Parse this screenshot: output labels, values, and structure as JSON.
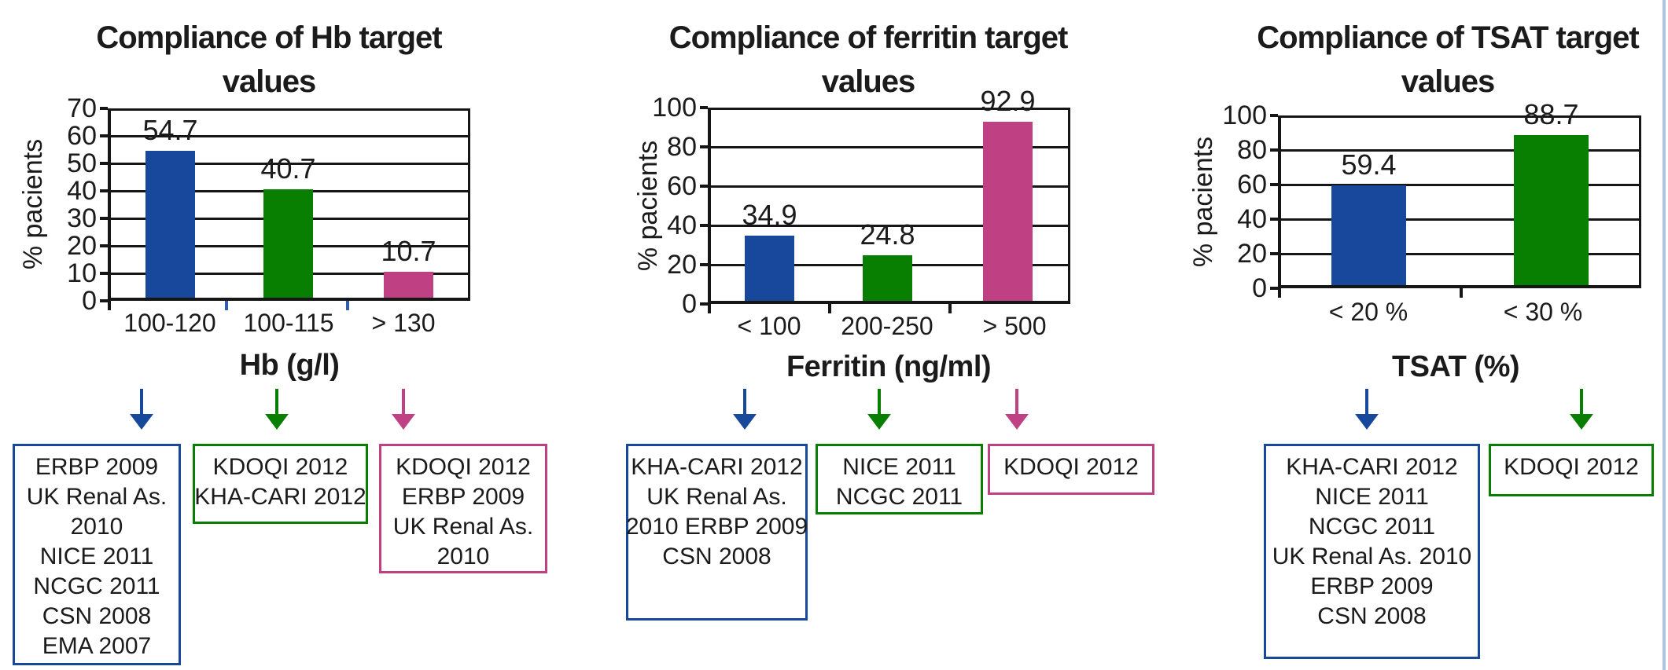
{
  "page": {
    "background": "#ffffff",
    "edge_line_color": "#aec6e0"
  },
  "colors": {
    "blue": "#17489c",
    "green": "#087f00",
    "pink": "#c04183",
    "line": "#161616",
    "text": "#1b1b1b",
    "category_tick_blue": "#2f5fae"
  },
  "chart_data": [
    {
      "type": "bar",
      "title": "Compliance of Hb target values",
      "title_lines": [
        "Compliance of Hb target",
        "values"
      ],
      "xlabel": "Hb (g/l)",
      "ylabel": "% pacients",
      "ylim": [
        0,
        70
      ],
      "ystep": 10,
      "grid": true,
      "legend": "none",
      "ytick_labels": [
        "70",
        "60",
        "50",
        "40",
        "30",
        "20",
        "10",
        "0"
      ],
      "categories": [
        "100-120",
        "100-115",
        "> 130"
      ],
      "values": [
        54.7,
        40.7,
        10.7
      ],
      "value_labels": [
        "54.7",
        "40.7",
        "10.7"
      ],
      "bar_colors": [
        "blue",
        "green",
        "pink"
      ],
      "annotations": [
        {
          "color": "blue",
          "lines": [
            "ERBP 2009",
            "UK Renal As.",
            "2010",
            "NICE 2011",
            "NCGC 2011",
            "CSN 2008",
            "EMA 2007"
          ]
        },
        {
          "color": "green",
          "lines": [
            "KDOQI 2012",
            "KHA-CARI 2012"
          ]
        },
        {
          "color": "pink",
          "lines": [
            "KDOQI 2012",
            "ERBP 2009",
            "UK Renal As.",
            "2010"
          ]
        }
      ]
    },
    {
      "type": "bar",
      "title": "Compliance of ferritin target values",
      "title_lines": [
        "Compliance of ferritin target",
        "values"
      ],
      "xlabel": "Ferritin (ng/ml)",
      "ylabel": "% pacients",
      "ylim": [
        0,
        100
      ],
      "ystep": 20,
      "grid": true,
      "legend": "none",
      "ytick_labels": [
        "100",
        "80",
        "60",
        "40",
        "20",
        "0"
      ],
      "categories": [
        "< 100",
        "200-250",
        "> 500"
      ],
      "values": [
        34.9,
        24.8,
        92.9
      ],
      "value_labels": [
        "34.9",
        "24.8",
        "92.9"
      ],
      "bar_colors": [
        "blue",
        "green",
        "pink"
      ],
      "annotations": [
        {
          "color": "blue",
          "lines": [
            "KHA-CARI 2012",
            "UK Renal As.",
            "2010 ERBP 2009",
            "CSN 2008"
          ]
        },
        {
          "color": "green",
          "lines": [
            "NICE 2011",
            "NCGC 2011"
          ]
        },
        {
          "color": "pink",
          "lines": [
            "KDOQI 2012"
          ]
        }
      ]
    },
    {
      "type": "bar",
      "title": "Compliance of TSAT target values",
      "title_lines": [
        "Compliance of TSAT target",
        "values"
      ],
      "xlabel": "TSAT (%)",
      "ylabel": "% pacients",
      "ylim": [
        0,
        100
      ],
      "ystep": 20,
      "grid": true,
      "legend": "none",
      "ytick_labels": [
        "100",
        "80",
        "60",
        "40",
        "20",
        "0"
      ],
      "categories": [
        "< 20 %",
        "< 30 %"
      ],
      "values": [
        59.4,
        88.7
      ],
      "value_labels": [
        "59.4",
        "88.7"
      ],
      "bar_colors": [
        "blue",
        "green"
      ],
      "annotations": [
        {
          "color": "blue",
          "lines": [
            "KHA-CARI 2012",
            "NICE 2011",
            "NCGC 2011",
            "UK Renal As. 2010",
            "ERBP 2009",
            "CSN 2008"
          ]
        },
        {
          "color": "green",
          "lines": [
            "KDOQI 2012"
          ]
        }
      ]
    }
  ]
}
